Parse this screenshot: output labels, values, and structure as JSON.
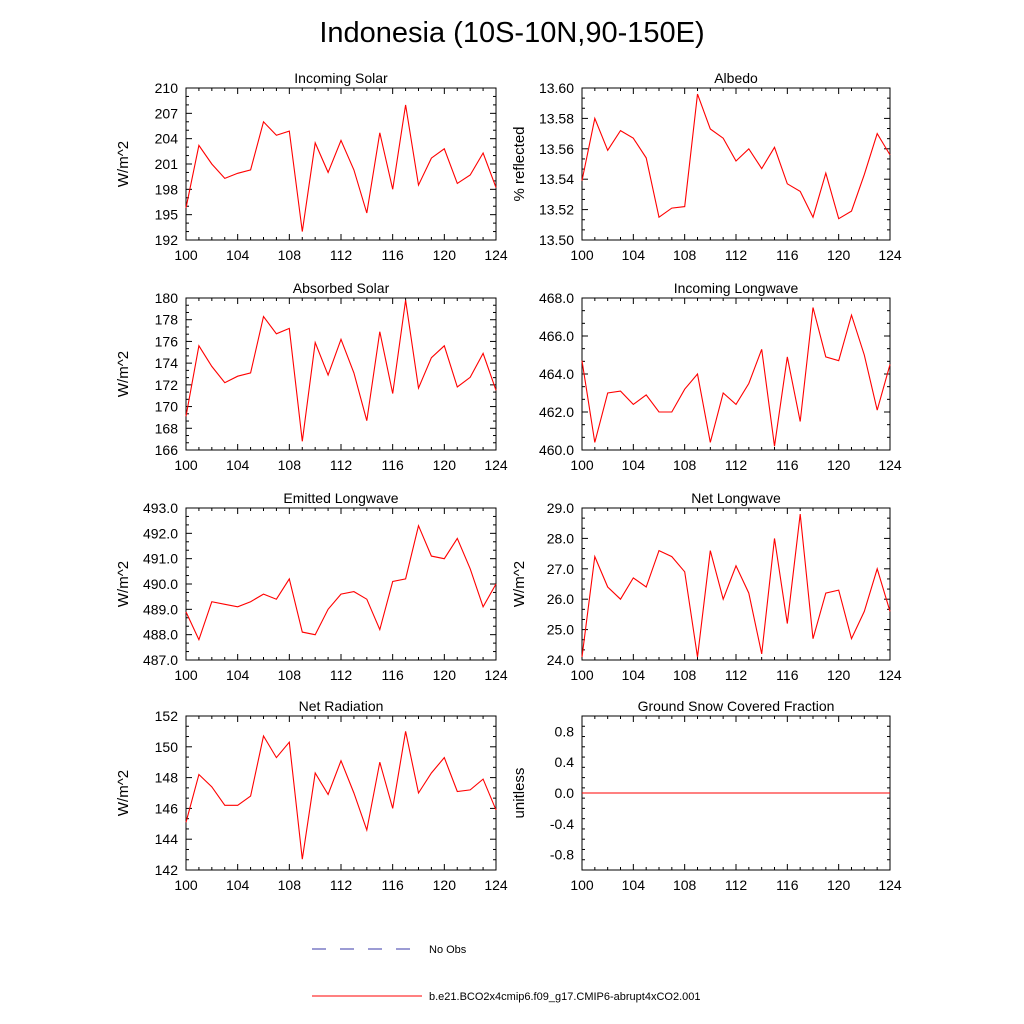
{
  "figure": {
    "title": "Indonesia (10S-10N,90-150E)",
    "line_color": "#ff0000",
    "obs_color": "#3a3aa8"
  },
  "legend": {
    "obs_label": "No Obs",
    "model_label": "b.e21.BCO2x4cmip6.f09_g17.CMIP6-abrupt4xCO2.001"
  },
  "chart_data": [
    {
      "type": "line",
      "title": "Incoming Solar",
      "ylabel": "W/m^2",
      "xlabel": "",
      "xlim": [
        100,
        124
      ],
      "ylim": [
        192,
        210
      ],
      "xticks": [
        "100",
        "104",
        "108",
        "112",
        "116",
        "120",
        "124"
      ],
      "yticks": [
        "192",
        "195",
        "198",
        "201",
        "204",
        "207",
        "210"
      ],
      "x": [
        100,
        101,
        102,
        103,
        104,
        105,
        106,
        107,
        108,
        109,
        110,
        111,
        112,
        113,
        114,
        115,
        116,
        117,
        118,
        119,
        120,
        121,
        122,
        123,
        124
      ],
      "values": [
        195.8,
        203.2,
        201.0,
        199.3,
        199.9,
        200.3,
        206.0,
        204.4,
        204.9,
        193.0,
        203.5,
        200.0,
        203.8,
        200.3,
        195.2,
        204.7,
        198.0,
        208.0,
        198.5,
        201.7,
        202.8,
        198.7,
        199.7,
        202.3,
        198.2
      ]
    },
    {
      "type": "line",
      "title": "Albedo",
      "ylabel": "% reflected",
      "xlabel": "",
      "xlim": [
        100,
        124
      ],
      "ylim": [
        13.5,
        13.6
      ],
      "xticks": [
        "100",
        "104",
        "108",
        "112",
        "116",
        "120",
        "124"
      ],
      "yticks": [
        "13.50",
        "13.52",
        "13.54",
        "13.56",
        "13.58",
        "13.60"
      ],
      "x": [
        100,
        101,
        102,
        103,
        104,
        105,
        106,
        107,
        108,
        109,
        110,
        111,
        112,
        113,
        114,
        115,
        116,
        117,
        118,
        119,
        120,
        121,
        122,
        123,
        124
      ],
      "values": [
        13.539,
        13.58,
        13.559,
        13.572,
        13.567,
        13.554,
        13.515,
        13.521,
        13.522,
        13.596,
        13.573,
        13.567,
        13.552,
        13.56,
        13.547,
        13.561,
        13.537,
        13.532,
        13.515,
        13.544,
        13.514,
        13.519,
        13.543,
        13.57,
        13.556
      ]
    },
    {
      "type": "line",
      "title": "Absorbed Solar",
      "ylabel": "W/m^2",
      "xlabel": "",
      "xlim": [
        100,
        124
      ],
      "ylim": [
        166,
        180
      ],
      "xticks": [
        "100",
        "104",
        "108",
        "112",
        "116",
        "120",
        "124"
      ],
      "yticks": [
        "166",
        "168",
        "170",
        "172",
        "174",
        "176",
        "178",
        "180"
      ],
      "x": [
        100,
        101,
        102,
        103,
        104,
        105,
        106,
        107,
        108,
        109,
        110,
        111,
        112,
        113,
        114,
        115,
        116,
        117,
        118,
        119,
        120,
        121,
        122,
        123,
        124
      ],
      "values": [
        169.1,
        175.6,
        173.7,
        172.2,
        172.8,
        173.1,
        178.3,
        176.7,
        177.2,
        166.8,
        175.9,
        172.9,
        176.2,
        173.1,
        168.7,
        176.9,
        171.2,
        179.8,
        171.7,
        174.5,
        175.6,
        171.8,
        172.7,
        174.9,
        171.5
      ]
    },
    {
      "type": "line",
      "title": "Incoming Longwave",
      "ylabel": "",
      "xlabel": "",
      "xlim": [
        100,
        124
      ],
      "ylim": [
        460.0,
        468.0
      ],
      "xticks": [
        "100",
        "104",
        "108",
        "112",
        "116",
        "120",
        "124"
      ],
      "yticks": [
        "460.0",
        "462.0",
        "464.0",
        "466.0",
        "468.0"
      ],
      "x": [
        100,
        101,
        102,
        103,
        104,
        105,
        106,
        107,
        108,
        109,
        110,
        111,
        112,
        113,
        114,
        115,
        116,
        117,
        118,
        119,
        120,
        121,
        122,
        123,
        124
      ],
      "values": [
        464.7,
        460.4,
        463.0,
        463.1,
        462.4,
        462.9,
        462.0,
        462.0,
        463.2,
        464.0,
        460.4,
        463.0,
        462.4,
        463.5,
        465.3,
        460.2,
        464.9,
        461.5,
        467.5,
        464.9,
        464.7,
        467.1,
        465.0,
        462.1,
        464.5
      ]
    },
    {
      "type": "line",
      "title": "Emitted Longwave",
      "ylabel": "W/m^2",
      "xlabel": "",
      "xlim": [
        100,
        124
      ],
      "ylim": [
        487.0,
        493.0
      ],
      "xticks": [
        "100",
        "104",
        "108",
        "112",
        "116",
        "120",
        "124"
      ],
      "yticks": [
        "487.0",
        "488.0",
        "489.0",
        "490.0",
        "491.0",
        "492.0",
        "493.0"
      ],
      "x": [
        100,
        101,
        102,
        103,
        104,
        105,
        106,
        107,
        108,
        109,
        110,
        111,
        112,
        113,
        114,
        115,
        116,
        117,
        118,
        119,
        120,
        121,
        122,
        123,
        124
      ],
      "values": [
        488.9,
        487.8,
        489.3,
        489.2,
        489.1,
        489.3,
        489.6,
        489.4,
        490.2,
        488.1,
        488.0,
        489.0,
        489.6,
        489.7,
        489.4,
        488.2,
        490.1,
        490.2,
        492.3,
        491.1,
        491.0,
        491.8,
        490.6,
        489.1,
        490.0
      ]
    },
    {
      "type": "line",
      "title": "Net Longwave",
      "ylabel": "W/m^2",
      "xlabel": "",
      "xlim": [
        100,
        124
      ],
      "ylim": [
        24.0,
        29.0
      ],
      "xticks": [
        "100",
        "104",
        "108",
        "112",
        "116",
        "120",
        "124"
      ],
      "yticks": [
        "24.0",
        "25.0",
        "26.0",
        "27.0",
        "28.0",
        "29.0"
      ],
      "x": [
        100,
        101,
        102,
        103,
        104,
        105,
        106,
        107,
        108,
        109,
        110,
        111,
        112,
        113,
        114,
        115,
        116,
        117,
        118,
        119,
        120,
        121,
        122,
        123,
        124
      ],
      "values": [
        24.1,
        27.4,
        26.4,
        26.0,
        26.7,
        26.4,
        27.6,
        27.4,
        26.9,
        24.1,
        27.6,
        26.0,
        27.1,
        26.2,
        24.2,
        28.0,
        25.2,
        28.8,
        24.7,
        26.2,
        26.3,
        24.7,
        25.6,
        27.0,
        25.6
      ]
    },
    {
      "type": "line",
      "title": "Net Radiation",
      "ylabel": "W/m^2",
      "xlabel": "",
      "xlim": [
        100,
        124
      ],
      "ylim": [
        142,
        152
      ],
      "xticks": [
        "100",
        "104",
        "108",
        "112",
        "116",
        "120",
        "124"
      ],
      "yticks": [
        "142",
        "144",
        "146",
        "148",
        "150",
        "152"
      ],
      "x": [
        100,
        101,
        102,
        103,
        104,
        105,
        106,
        107,
        108,
        109,
        110,
        111,
        112,
        113,
        114,
        115,
        116,
        117,
        118,
        119,
        120,
        121,
        122,
        123,
        124
      ],
      "values": [
        145.1,
        148.2,
        147.4,
        146.2,
        146.2,
        146.8,
        150.7,
        149.3,
        150.3,
        142.7,
        148.3,
        146.9,
        149.1,
        147.0,
        144.6,
        149.0,
        146.0,
        151.0,
        147.0,
        148.3,
        149.3,
        147.1,
        147.2,
        147.9,
        145.9
      ]
    },
    {
      "type": "line",
      "title": "Ground Snow Covered Fraction",
      "ylabel": "unitless",
      "xlabel": "",
      "xlim": [
        100,
        124
      ],
      "ylim": [
        -1.0,
        1.0
      ],
      "xticks": [
        "100",
        "104",
        "108",
        "112",
        "116",
        "120",
        "124"
      ],
      "yticks": [
        "-0.8",
        "-0.4",
        "0.0",
        "0.4",
        "0.8"
      ],
      "x": [
        100,
        101,
        102,
        103,
        104,
        105,
        106,
        107,
        108,
        109,
        110,
        111,
        112,
        113,
        114,
        115,
        116,
        117,
        118,
        119,
        120,
        121,
        122,
        123,
        124
      ],
      "values": [
        0,
        0,
        0,
        0,
        0,
        0,
        0,
        0,
        0,
        0,
        0,
        0,
        0,
        0,
        0,
        0,
        0,
        0,
        0,
        0,
        0,
        0,
        0,
        0,
        0
      ]
    }
  ]
}
